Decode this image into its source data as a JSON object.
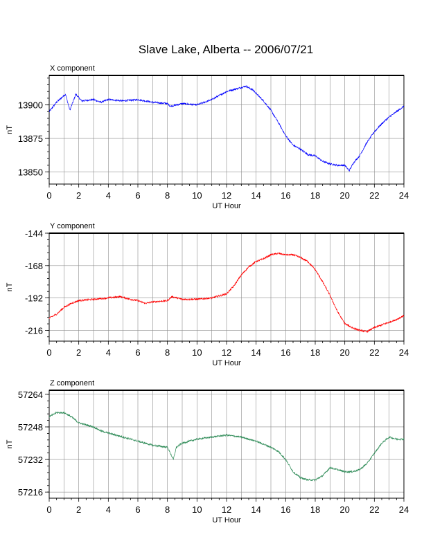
{
  "title": "Slave Lake, Alberta -- 2006/07/21",
  "chart_data": [
    {
      "type": "line",
      "component": "X component",
      "xlabel": "UT Hour",
      "ylabel": "nT",
      "xlim": [
        0,
        24
      ],
      "xticks": [
        0,
        2,
        4,
        6,
        8,
        10,
        12,
        14,
        16,
        18,
        20,
        22,
        24
      ],
      "ylim": [
        13841,
        13922
      ],
      "yticks": [
        13850,
        13875,
        13900
      ],
      "color": "#0000ff",
      "series": [
        {
          "x": [
            0,
            0.5,
            0.9,
            1.1,
            1.4,
            1.8,
            2.2,
            3,
            3.5,
            4,
            5,
            6,
            7,
            8,
            8.2,
            9,
            10,
            11,
            12,
            13,
            13.3,
            13.8,
            14.5,
            15,
            15.5,
            16,
            16.5,
            17,
            17.5,
            18,
            18.5,
            19,
            19.5,
            20,
            20.3,
            20.6,
            21,
            21.5,
            22,
            22.5,
            23,
            23.5,
            24
          ],
          "y": [
            13895,
            13902,
            13906,
            13908,
            13896,
            13908,
            13903,
            13904,
            13902,
            13904,
            13903,
            13904,
            13902,
            13901,
            13899,
            13901,
            13900,
            13904,
            13910,
            13913,
            13914,
            13911,
            13903,
            13896,
            13887,
            13877,
            13870,
            13867,
            13863,
            13862,
            13858,
            13856,
            13855,
            13855,
            13851,
            13857,
            13862,
            13872,
            13880,
            13886,
            13891,
            13895,
            13899
          ]
        }
      ]
    },
    {
      "type": "line",
      "component": "Y component",
      "xlabel": "UT Hour",
      "ylabel": "nT",
      "xlim": [
        0,
        24
      ],
      "xticks": [
        0,
        2,
        4,
        6,
        8,
        10,
        12,
        14,
        16,
        18,
        20,
        22,
        24
      ],
      "ylim": [
        -224,
        -144
      ],
      "yticks": [
        -144,
        -168,
        -192,
        -216
      ],
      "color": "#ff0000",
      "series": [
        {
          "x": [
            0,
            0.5,
            1,
            1.5,
            2,
            3,
            4,
            4.8,
            5.5,
            6,
            6.5,
            7,
            8,
            8.3,
            9,
            10,
            11,
            12,
            12.5,
            13,
            13.5,
            14,
            14.5,
            15,
            15.5,
            16,
            16.5,
            17,
            17.5,
            18,
            18.5,
            19,
            19.5,
            20,
            20.5,
            21,
            21.5,
            22,
            22.5,
            23,
            23.5,
            24
          ],
          "y": [
            -207,
            -204,
            -199,
            -196,
            -194,
            -193,
            -192,
            -191,
            -193,
            -194,
            -196,
            -195,
            -194,
            -191,
            -193,
            -193,
            -192,
            -189,
            -183,
            -175,
            -169,
            -165,
            -163,
            -160,
            -159,
            -160,
            -160,
            -162,
            -165,
            -171,
            -180,
            -190,
            -202,
            -211,
            -214,
            -216,
            -217,
            -214,
            -212,
            -210,
            -208,
            -205
          ]
        }
      ]
    },
    {
      "type": "line",
      "component": "Z component",
      "xlabel": "UT Hour",
      "ylabel": "nT",
      "xlim": [
        0,
        24
      ],
      "xticks": [
        0,
        2,
        4,
        6,
        8,
        10,
        12,
        14,
        16,
        18,
        20,
        22,
        24
      ],
      "ylim": [
        57213,
        57266
      ],
      "yticks": [
        57216,
        57232,
        57248,
        57264
      ],
      "color": "#2e8b57",
      "series": [
        {
          "x": [
            0,
            0.5,
            1,
            1.5,
            2,
            2.5,
            3,
            3.5,
            4,
            5,
            6,
            7,
            8,
            8.2,
            8.4,
            8.6,
            9,
            10,
            11,
            12,
            13,
            14,
            15,
            15.5,
            16,
            16.5,
            17,
            17.5,
            18,
            18.5,
            19,
            19.5,
            20,
            20.5,
            21,
            21.5,
            22,
            22.5,
            23,
            23.5,
            24
          ],
          "y": [
            57253,
            57255,
            57255,
            57253,
            57250,
            57249,
            57248,
            57246,
            57245,
            57243,
            57241,
            57239,
            57238,
            57235,
            57232,
            57238,
            57240,
            57242,
            57243,
            57244,
            57243,
            57241,
            57238,
            57236,
            57232,
            57226,
            57223,
            57222,
            57222,
            57224,
            57228,
            57227,
            57226,
            57226,
            57227,
            57230,
            57235,
            57240,
            57243,
            57242,
            57242
          ]
        }
      ]
    }
  ]
}
